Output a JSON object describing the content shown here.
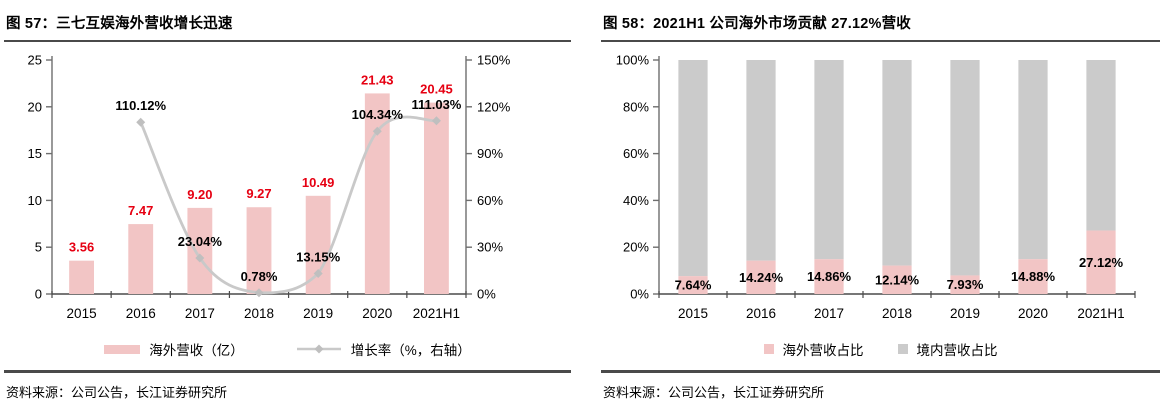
{
  "panels": [
    {
      "title": "图  57：三七互娱海外营收增长迅速",
      "source": "资料来源：公司公告，长江证券研究所",
      "legend": [
        {
          "label": "海外营收（亿）",
          "swatch": "bar",
          "color": "#f2c5c5"
        },
        {
          "label": "增长率（%，右轴）",
          "swatch": "line",
          "color": "#c9c9c9",
          "marker_color": "#bfbfbf"
        }
      ]
    },
    {
      "title": "图  58：2021H1 公司海外市场贡献 27.12%营收",
      "source": "资料来源：公司公告，长江证券研究所",
      "legend": [
        {
          "label": "海外营收占比",
          "swatch": "square",
          "color": "#f2c5c5"
        },
        {
          "label": "境内营收占比",
          "swatch": "square",
          "color": "#cbcbcb"
        }
      ]
    }
  ],
  "chart_data": [
    {
      "type": "bar",
      "subtype": "combo-bar-line",
      "title": "图  57：三七互娱海外营收增长迅速",
      "categories": [
        "2015",
        "2016",
        "2017",
        "2018",
        "2019",
        "2020",
        "2021H1"
      ],
      "series": [
        {
          "name": "海外营收（亿）",
          "type": "bar",
          "axis": "left",
          "color": "#f2c5c5",
          "values": [
            3.56,
            7.47,
            9.2,
            9.27,
            10.49,
            21.43,
            20.45
          ],
          "labels": [
            "3.56",
            "7.47",
            "9.20",
            "9.27",
            "10.49",
            "21.43",
            "20.45"
          ],
          "label_color": "#e60012"
        },
        {
          "name": "增长率（%，右轴）",
          "type": "line",
          "axis": "right",
          "color": "#c9c9c9",
          "marker_color": "#bfbfbf",
          "values": [
            null,
            110.12,
            23.04,
            0.78,
            13.15,
            104.34,
            111.03
          ],
          "labels": [
            "",
            "110.12%",
            "23.04%",
            "0.78%",
            "13.15%",
            "104.34%",
            "111.03%"
          ],
          "label_color": "#000000"
        }
      ],
      "left_axis": {
        "min": 0,
        "max": 25,
        "step": 5,
        "tick_labels": [
          "0",
          "5",
          "10",
          "15",
          "20",
          "25"
        ]
      },
      "right_axis": {
        "min": 0,
        "max": 150,
        "step": 30,
        "tick_labels": [
          "0%",
          "30%",
          "60%",
          "90%",
          "120%",
          "150%"
        ]
      },
      "grid": false,
      "legend_position": "bottom"
    },
    {
      "type": "bar",
      "subtype": "stacked-percent",
      "title": "图  58：2021H1 公司海外市场贡献 27.12%营收",
      "categories": [
        "2015",
        "2016",
        "2017",
        "2018",
        "2019",
        "2020",
        "2021H1"
      ],
      "series": [
        {
          "name": "海外营收占比",
          "color": "#f2c5c5",
          "values": [
            7.64,
            14.24,
            14.86,
            12.14,
            7.93,
            14.88,
            27.12
          ],
          "labels": [
            "7.64%",
            "14.24%",
            "14.86%",
            "12.14%",
            "7.93%",
            "14.88%",
            "27.12%"
          ],
          "label_color": "#000000"
        },
        {
          "name": "境内营收占比",
          "color": "#cbcbcb",
          "values": [
            92.36,
            85.76,
            85.14,
            87.86,
            92.07,
            85.12,
            72.88
          ]
        }
      ],
      "left_axis": {
        "min": 0,
        "max": 100,
        "step": 20,
        "tick_labels": [
          "0%",
          "20%",
          "40%",
          "60%",
          "80%",
          "100%"
        ]
      },
      "grid": false,
      "legend_position": "bottom"
    }
  ]
}
